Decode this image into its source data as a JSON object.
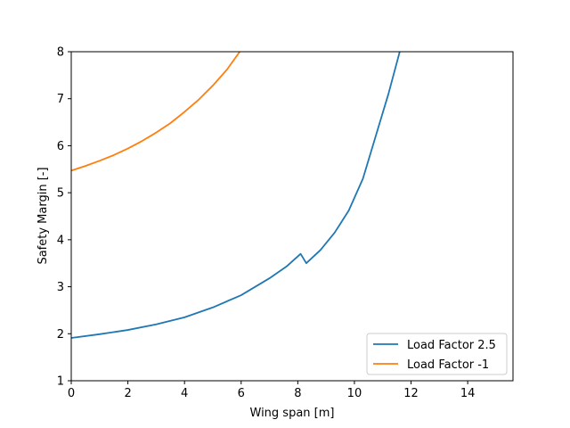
{
  "chart_data": {
    "type": "line",
    "title": "",
    "xlabel": "Wing span [m]",
    "ylabel": "Safety Margin [-]",
    "xlim": [
      0,
      15.6
    ],
    "ylim": [
      1,
      8
    ],
    "xticks": [
      0,
      2,
      4,
      6,
      8,
      10,
      12,
      14
    ],
    "yticks": [
      1,
      2,
      3,
      4,
      5,
      6,
      7,
      8
    ],
    "grid": false,
    "legend_position": "lower-right",
    "series": [
      {
        "name": "Load Factor 2.5",
        "color": "#1f77b4",
        "x": [
          0,
          1,
          2,
          3,
          4,
          5,
          6,
          7,
          7.6,
          8.1,
          8.3,
          8.8,
          9.3,
          9.8,
          10.3,
          10.8,
          11.2,
          11.6
        ],
        "y": [
          1.91,
          1.99,
          2.08,
          2.2,
          2.35,
          2.56,
          2.82,
          3.18,
          3.43,
          3.7,
          3.5,
          3.78,
          4.15,
          4.62,
          5.3,
          6.3,
          7.1,
          8.0
        ]
      },
      {
        "name": "Load Factor -1",
        "color": "#ff7f0e",
        "x": [
          0,
          0.5,
          1,
          1.5,
          2,
          2.5,
          3,
          3.5,
          4,
          4.5,
          5,
          5.5,
          5.95
        ],
        "y": [
          5.47,
          5.57,
          5.68,
          5.8,
          5.94,
          6.1,
          6.28,
          6.48,
          6.72,
          6.98,
          7.28,
          7.62,
          8.0
        ]
      }
    ]
  }
}
